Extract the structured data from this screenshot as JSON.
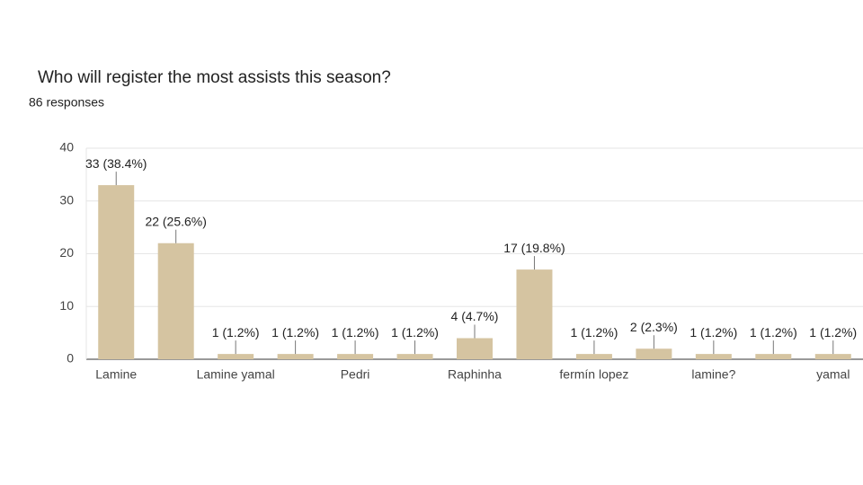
{
  "chart_data": {
    "type": "bar",
    "title": "Who will register the most assists this season?",
    "subtitle": "86 responses",
    "categories": [
      "Lamine",
      null,
      "Lamine yamal",
      null,
      "Pedri",
      null,
      "Raphinha",
      null,
      "fermín lopez",
      null,
      "lamine?",
      null,
      "yamal"
    ],
    "values": [
      33,
      22,
      1,
      1,
      1,
      1,
      4,
      17,
      1,
      2,
      1,
      1,
      1
    ],
    "value_labels": [
      "33 (38.4%)",
      "22 (25.6%)",
      "1 (1.2%)",
      "1 (1.2%)",
      "1 (1.2%)",
      "1 (1.2%)",
      "4 (4.7%)",
      "17 (19.8%)",
      "1 (1.2%)",
      "2 (2.3%)",
      "1 (1.2%)",
      "1 (1.2%)",
      "1 (1.2%)"
    ],
    "color": "#d5c4a1",
    "ylim": [
      0,
      40
    ],
    "yticks": [
      0,
      10,
      20,
      30,
      40
    ],
    "grid": true
  }
}
